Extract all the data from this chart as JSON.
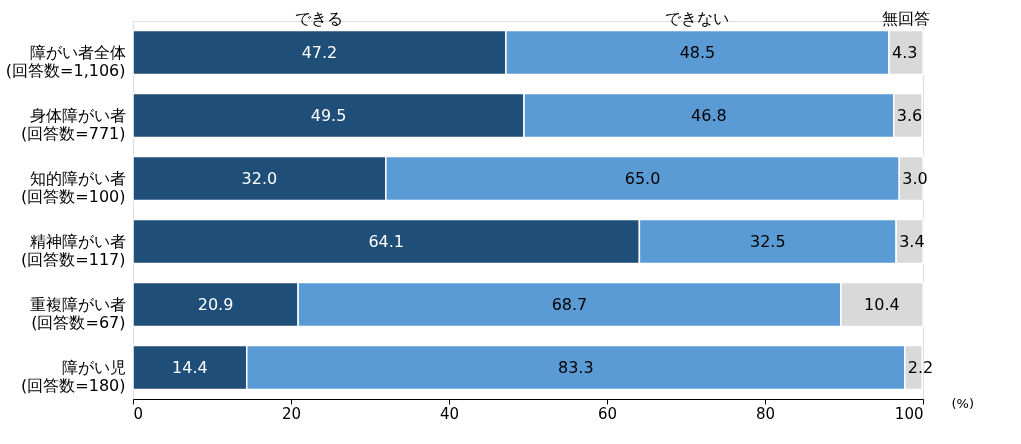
{
  "chart_data": {
    "type": "bar",
    "orientation": "horizontal",
    "stacked": true,
    "legend": "top",
    "grid": false,
    "xlabel": "(%)",
    "categories": [
      "障がい者全体\n(回答数=1,106)",
      "身体障がい者\n(回答数=771)",
      "知的障がい者\n(回答数=100)",
      "精神障がい者\n(回答数=117)",
      "重複障がい者\n(回答数=67)",
      "障がい児\n(回答数=180)"
    ],
    "xlim": [
      0,
      100
    ],
    "xticks": [
      0,
      20,
      40,
      60,
      80,
      100
    ],
    "series": [
      {
        "name": "できる",
        "color": "#1f4e79",
        "values": [
          47.2,
          49.5,
          32.0,
          64.1,
          20.9,
          14.4
        ],
        "value_labels": [
          "47.2",
          "49.5",
          "32.0",
          "64.1",
          "20.9",
          "14.4"
        ]
      },
      {
        "name": "できない",
        "color": "#5b9bd5",
        "values": [
          48.5,
          46.8,
          65.0,
          32.5,
          68.7,
          83.3
        ],
        "value_labels": [
          "48.5",
          "46.8",
          "65.0",
          "32.5",
          "68.7",
          "83.3"
        ]
      },
      {
        "name": "無回答",
        "color": "#d9d9d9",
        "values": [
          4.3,
          3.6,
          3.0,
          3.4,
          10.4,
          2.2
        ],
        "value_labels": [
          "4.3",
          "3.6",
          "3.0",
          "3.4",
          "10.4",
          "2.2"
        ]
      }
    ]
  }
}
